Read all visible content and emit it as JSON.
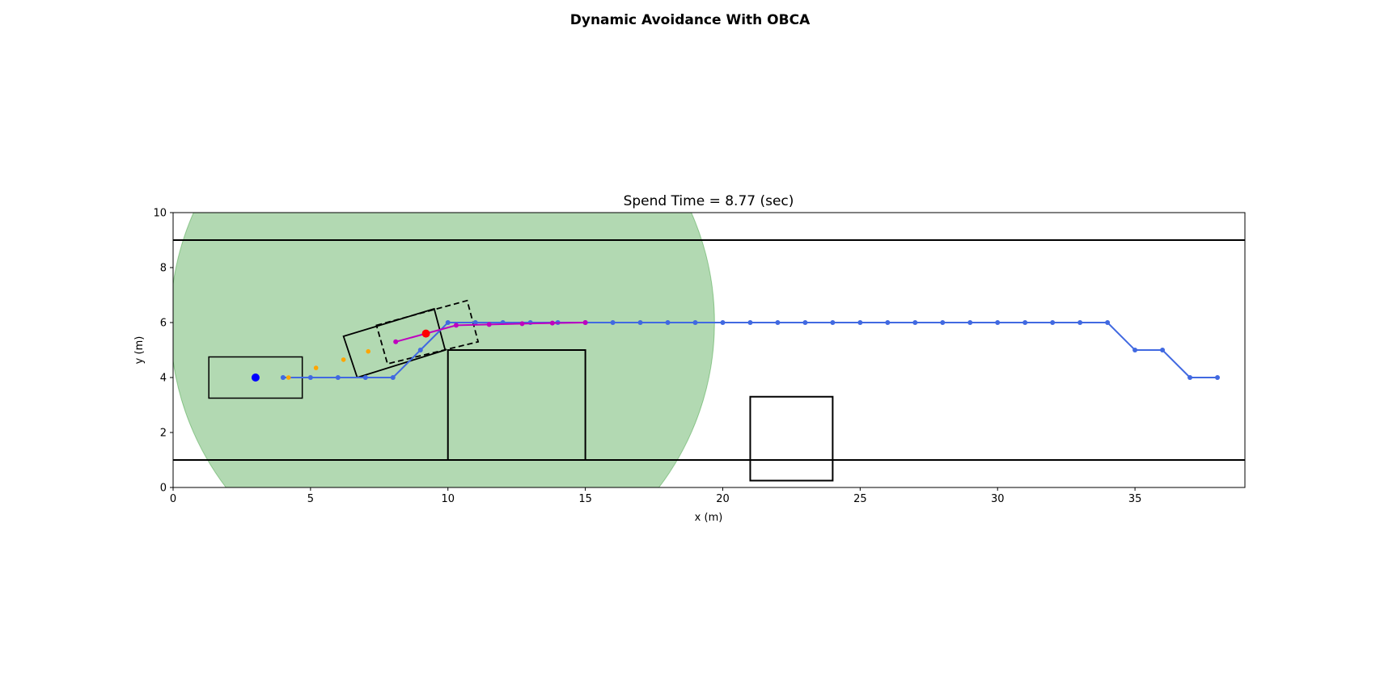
{
  "figure": {
    "suptitle": "Dynamic Avoidance With OBCA"
  },
  "chart_data": {
    "type": "line",
    "title": "Spend Time = 8.77 (sec)",
    "xlabel": "x (m)",
    "ylabel": "y (m)",
    "xlim": [
      0,
      39
    ],
    "ylim": [
      0,
      10
    ],
    "xticks": [
      0,
      5,
      10,
      15,
      20,
      25,
      30,
      35
    ],
    "yticks": [
      0,
      2,
      4,
      6,
      8,
      10
    ],
    "grid": false,
    "colors": {
      "reference_path": "#4169e1",
      "optimized_path": "#bf00bf",
      "past_trajectory": "#ffa500",
      "current_position": "#ff0000",
      "start_position": "#0000ff",
      "sensing_area": "#008000",
      "outline": "#000000"
    },
    "road_boundaries": [
      {
        "y": 9.0,
        "x": [
          0,
          39
        ]
      },
      {
        "y": 1.0,
        "x": [
          0,
          39
        ]
      }
    ],
    "sensing_area": {
      "center": [
        9.8,
        6.0
      ],
      "rx": 9.9,
      "ry": 9.9
    },
    "static_obstacles": [
      {
        "corners": [
          [
            10.0,
            1.0
          ],
          [
            15.0,
            1.0
          ],
          [
            15.0,
            5.0
          ],
          [
            10.0,
            5.0
          ]
        ]
      },
      {
        "corners": [
          [
            21.0,
            0.25
          ],
          [
            24.0,
            0.25
          ],
          [
            24.0,
            3.3
          ],
          [
            21.0,
            3.3
          ]
        ]
      }
    ],
    "start_vehicle": {
      "corners": [
        [
          1.3,
          3.25
        ],
        [
          4.7,
          3.25
        ],
        [
          4.7,
          4.75
        ],
        [
          1.3,
          4.75
        ]
      ],
      "center": [
        3.0,
        4.0
      ]
    },
    "current_vehicle": {
      "corners": [
        [
          6.2,
          5.5
        ],
        [
          9.5,
          6.5
        ],
        [
          9.9,
          5.0
        ],
        [
          6.7,
          4.0
        ]
      ],
      "center": [
        9.2,
        5.6
      ]
    },
    "predicted_vehicle": {
      "corners": [
        [
          7.4,
          5.9
        ],
        [
          10.7,
          6.8
        ],
        [
          11.1,
          5.3
        ],
        [
          7.8,
          4.5
        ]
      ]
    },
    "series": [
      {
        "name": "",
        "role": "reference_path",
        "x": [
          4,
          5,
          6,
          7,
          8,
          9,
          10,
          11,
          12,
          13,
          14,
          15,
          16,
          17,
          18,
          19,
          20,
          21,
          22,
          23,
          24,
          25,
          26,
          27,
          28,
          29,
          30,
          31,
          32,
          33,
          34,
          35,
          36,
          37,
          38
        ],
        "y": [
          4,
          4,
          4,
          4,
          4,
          5,
          6,
          6,
          6,
          6,
          6,
          6,
          6,
          6,
          6,
          6,
          6,
          6,
          6,
          6,
          6,
          6,
          6,
          6,
          6,
          6,
          6,
          6,
          6,
          6,
          6,
          5,
          5,
          4,
          4
        ]
      },
      {
        "name": "",
        "role": "optimized_path",
        "x": [
          8.1,
          9.2,
          10.3,
          11.5,
          12.7,
          13.8,
          15.0
        ],
        "y": [
          5.3,
          5.6,
          5.9,
          5.93,
          5.96,
          5.98,
          6.0
        ]
      },
      {
        "name": "",
        "role": "past_trajectory",
        "x": [
          4.2,
          5.2,
          6.2,
          7.1
        ],
        "y": [
          4.0,
          4.35,
          4.65,
          4.95
        ]
      }
    ]
  }
}
